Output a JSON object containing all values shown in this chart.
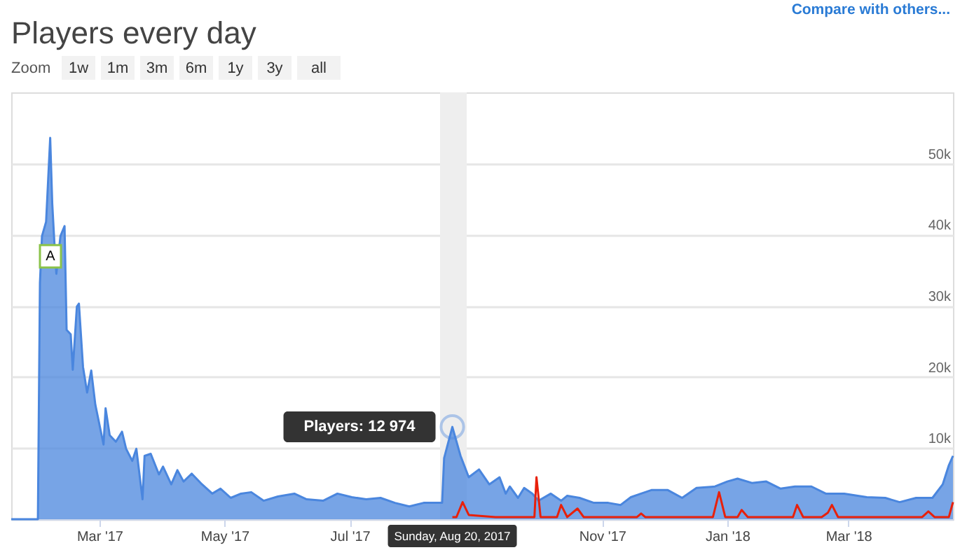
{
  "chart_data": {
    "type": "area",
    "title": "Players every day",
    "x": [
      "2017-01-17",
      "2017-01-30",
      "2017-01-31",
      "2017-02-01",
      "2017-02-03",
      "2017-02-05",
      "2017-02-06",
      "2017-02-07",
      "2017-02-08",
      "2017-02-10",
      "2017-02-12",
      "2017-02-13",
      "2017-02-15",
      "2017-02-16",
      "2017-02-18",
      "2017-02-19",
      "2017-02-21",
      "2017-02-23",
      "2017-02-25",
      "2017-02-27",
      "2017-03-03",
      "2017-03-04",
      "2017-03-06",
      "2017-03-09",
      "2017-03-12",
      "2017-03-14",
      "2017-03-17",
      "2017-03-19",
      "2017-03-22",
      "2017-03-23",
      "2017-03-26",
      "2017-03-30",
      "2017-04-01",
      "2017-04-05",
      "2017-04-08",
      "2017-04-11",
      "2017-04-15",
      "2017-04-20",
      "2017-04-25",
      "2017-04-29",
      "2017-05-04",
      "2017-05-09",
      "2017-05-14",
      "2017-05-20",
      "2017-05-27",
      "2017-06-04",
      "2017-06-10",
      "2017-06-18",
      "2017-06-25",
      "2017-07-02",
      "2017-07-09",
      "2017-07-16",
      "2017-07-23",
      "2017-07-30",
      "2017-08-06",
      "2017-08-15",
      "2017-08-16",
      "2017-08-20",
      "2017-08-24",
      "2017-08-28",
      "2017-09-02",
      "2017-09-07",
      "2017-09-12",
      "2017-09-15",
      "2017-09-17",
      "2017-09-21",
      "2017-09-24",
      "2017-09-28",
      "2017-10-01",
      "2017-10-07",
      "2017-10-12",
      "2017-10-15",
      "2017-10-21",
      "2017-10-28",
      "2017-11-04",
      "2017-11-10",
      "2017-11-15",
      "2017-11-19",
      "2017-11-25",
      "2017-12-03",
      "2017-12-10",
      "2017-12-17",
      "2017-12-26",
      "2018-01-01",
      "2018-01-06",
      "2018-01-13",
      "2018-01-20",
      "2018-01-27",
      "2018-02-03",
      "2018-02-11",
      "2018-02-18",
      "2018-02-27",
      "2018-03-10",
      "2018-03-19",
      "2018-03-26",
      "2018-04-03",
      "2018-04-11",
      "2018-04-16",
      "2018-04-19",
      "2018-04-21"
    ],
    "series": [
      {
        "color": "#4a86de",
        "values": [
          0,
          0,
          33200,
          39800,
          41800,
          53600,
          44400,
          39100,
          34500,
          39800,
          41200,
          26600,
          26000,
          21000,
          29900,
          30300,
          21400,
          17800,
          20900,
          16100,
          10500,
          15600,
          11800,
          10900,
          12300,
          9900,
          8200,
          9900,
          2800,
          8900,
          9200,
          6300,
          7400,
          4900,
          6900,
          5300,
          6400,
          4900,
          3600,
          4300,
          3000,
          3600,
          3800,
          2600,
          3200,
          3600,
          2800,
          2600,
          3600,
          3100,
          2800,
          3000,
          2300,
          1800,
          2300,
          2300,
          8600,
          12974,
          8900,
          5900,
          7000,
          4900,
          5900,
          3600,
          4600,
          3000,
          4400,
          3600,
          2600,
          3600,
          2600,
          3300,
          3000,
          2300,
          2300,
          2000,
          3100,
          3500,
          4100,
          4100,
          3000,
          4400,
          4600,
          5300,
          5700,
          5100,
          5300,
          4300,
          4600,
          4600,
          3600,
          3600,
          3100,
          3000,
          2400,
          3000,
          3000,
          4900,
          7600,
          8900
        ]
      },
      {
        "type": "line",
        "color": "#e8200a",
        "x": [
          "2017-08-20",
          "2017-08-22",
          "2017-08-25",
          "2017-08-28",
          "2017-09-10",
          "2017-09-29",
          "2017-09-30",
          "2017-10-02",
          "2017-10-10",
          "2017-10-12",
          "2017-10-15",
          "2017-10-20",
          "2017-10-23",
          "2017-11-18",
          "2017-11-20",
          "2017-11-22",
          "2017-12-25",
          "2017-12-28",
          "2017-12-31",
          "2018-01-06",
          "2018-01-08",
          "2018-01-11",
          "2018-02-02",
          "2018-02-04",
          "2018-02-07",
          "2018-02-16",
          "2018-02-19",
          "2018-02-21",
          "2018-02-24",
          "2018-04-06",
          "2018-04-09",
          "2018-04-12",
          "2018-04-19",
          "2018-04-21"
        ],
        "values": [
          300,
          300,
          2400,
          600,
          300,
          300,
          5900,
          300,
          300,
          2000,
          300,
          1500,
          300,
          300,
          800,
          300,
          300,
          3800,
          300,
          300,
          1300,
          300,
          300,
          2000,
          300,
          300,
          900,
          2000,
          300,
          300,
          1100,
          300,
          300,
          2400
        ]
      }
    ],
    "xlim": [
      "2017-01-17",
      "2018-04-21"
    ],
    "xticks": [
      {
        "value": "2017-03-01",
        "label": "Mar '17"
      },
      {
        "value": "2017-05-01",
        "label": "May '17"
      },
      {
        "value": "2017-07-01",
        "label": "Jul '17"
      },
      {
        "value": "2017-11-01",
        "label": "Nov '17"
      },
      {
        "value": "2018-01-01",
        "label": "Jan '18"
      },
      {
        "value": "2018-03-01",
        "label": "Mar '18"
      }
    ],
    "ylim": [
      0,
      60000
    ],
    "yticks": [
      {
        "value": 0,
        "label": null
      },
      {
        "value": 10000,
        "label": "10k"
      },
      {
        "value": 20000,
        "label": "20k"
      },
      {
        "value": 30000,
        "label": "30k"
      },
      {
        "value": 40000,
        "label": "40k"
      },
      {
        "value": 50000,
        "label": "50k"
      }
    ],
    "grid": "y",
    "bands": [
      {
        "axis": "x",
        "from": "2017-08-14",
        "to": "2017-08-27",
        "color": "#eeeeee"
      }
    ],
    "annotations": [
      "Compare with others...",
      "Zoom",
      "1w",
      "1m",
      "3m",
      "6m",
      "1y",
      "3y",
      "all",
      {
        "text": "A",
        "x": "2017-01-31",
        "y": 35000
      },
      {
        "text": "Players: 12 974",
        "x": "2017-08-20",
        "y": 12974
      },
      "Sunday, Aug 20, 2017"
    ]
  }
}
